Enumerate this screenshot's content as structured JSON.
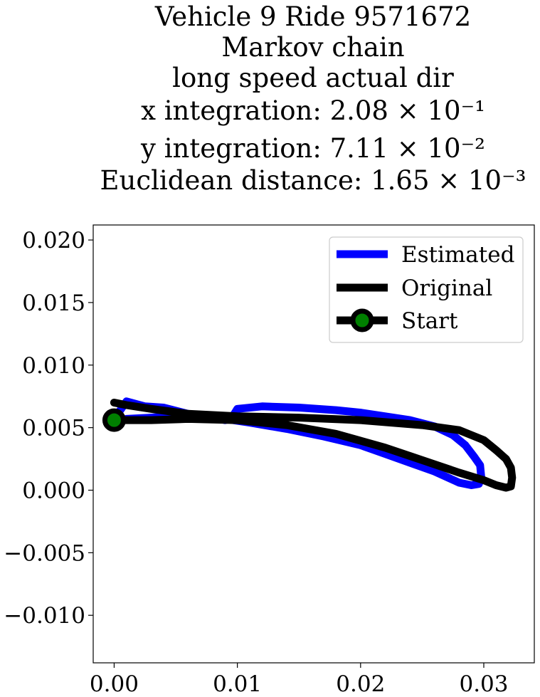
{
  "chart_data": {
    "type": "line",
    "title_lines": [
      "Vehicle 9 Ride 9571672",
      "Markov chain",
      "long speed actual dir",
      "x integration: 2.08 × 10⁻¹",
      "y integration: 7.11 × 10⁻²",
      "Euclidean distance: 1.65 × 10⁻³"
    ],
    "xlabel": "",
    "ylabel": "",
    "xlim": [
      -0.0017,
      0.0341
    ],
    "ylim": [
      -0.0138,
      0.0212
    ],
    "x_ticks": [
      0.0,
      0.01,
      0.02,
      0.03
    ],
    "x_tick_labels": [
      "0.00",
      "0.01",
      "0.02",
      "0.03"
    ],
    "y_ticks": [
      -0.01,
      -0.005,
      0.0,
      0.005,
      0.01,
      0.015,
      0.02
    ],
    "y_tick_labels": [
      "−0.010",
      "−0.005",
      "0.000",
      "0.005",
      "0.010",
      "0.015",
      "0.020"
    ],
    "grid": false,
    "legend_position": "top-right",
    "series": [
      {
        "name": "Estimated",
        "color": "#0000ff",
        "x": [
          0.0,
          0.001,
          0.0025,
          0.004,
          0.006,
          0.008,
          0.009,
          0.0095,
          0.01,
          0.012,
          0.015,
          0.018,
          0.02,
          0.022,
          0.024,
          0.026,
          0.0275,
          0.0285,
          0.0292,
          0.0297,
          0.0298,
          0.0296,
          0.029,
          0.028,
          0.026,
          0.024,
          0.022,
          0.02,
          0.017,
          0.014,
          0.011,
          0.009,
          0.006,
          0.003,
          0.001
        ],
        "y": [
          0.0057,
          0.0071,
          0.0067,
          0.0066,
          0.0061,
          0.0058,
          0.0056,
          0.0057,
          0.0065,
          0.0067,
          0.0066,
          0.0064,
          0.0062,
          0.0059,
          0.0056,
          0.0051,
          0.0044,
          0.0036,
          0.0027,
          0.002,
          0.001,
          0.0005,
          0.0004,
          0.0006,
          0.0015,
          0.0022,
          0.0029,
          0.0036,
          0.0043,
          0.0049,
          0.0054,
          0.0057,
          0.006,
          0.0058,
          0.0057
        ]
      },
      {
        "name": "Original",
        "color": "#000000",
        "x": [
          0.0,
          0.001,
          0.003,
          0.006,
          0.01,
          0.015,
          0.02,
          0.025,
          0.028,
          0.03,
          0.031,
          0.0318,
          0.0322,
          0.0323,
          0.0322,
          0.0318,
          0.031,
          0.03,
          0.028,
          0.025,
          0.022,
          0.018,
          0.014,
          0.01,
          0.006,
          0.003,
          0.001,
          0.0
        ],
        "y": [
          0.007,
          0.0068,
          0.0065,
          0.0061,
          0.0059,
          0.0058,
          0.0056,
          0.0052,
          0.0048,
          0.004,
          0.0032,
          0.0025,
          0.0018,
          0.001,
          0.0003,
          0.0002,
          0.0004,
          0.0008,
          0.0014,
          0.0024,
          0.0034,
          0.0045,
          0.0052,
          0.0056,
          0.0057,
          0.0056,
          0.0056,
          0.0056
        ]
      }
    ],
    "start_point": {
      "name": "Start",
      "x": 0.0,
      "y": 0.0056,
      "fill_color": "#008000",
      "edge_color": "#000000"
    }
  }
}
